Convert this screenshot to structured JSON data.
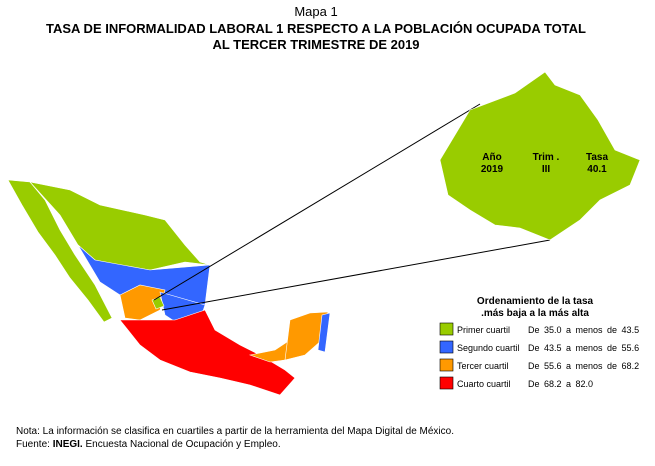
{
  "header": {
    "label": "Mapa 1",
    "title": "TASA DE INFORMALIDAD LABORAL 1 RESPECTO A LA POBLACIÓN OCUPADA TOTAL",
    "subtitle": "AL TERCER TRIMESTRE DE 2019"
  },
  "callout": {
    "columns": [
      {
        "head": "Año",
        "value": "2019"
      },
      {
        "head": "Trim .",
        "value": "III"
      },
      {
        "head": "Tasa",
        "value": "40.1"
      }
    ]
  },
  "legend": {
    "title": "Ordenamiento de la tasa",
    "subtitle": ".más baja a la más alta",
    "items": [
      {
        "label": "Primer cuartil",
        "range": "De 35.0 a menos de 43.5",
        "color": "#99cc00"
      },
      {
        "label": "Segundo cuartil",
        "range": "De 43.5 a menos de 55.6",
        "color": "#3366ff"
      },
      {
        "label": "Tercer cuartil",
        "range": "De 55.6 a menos de 68.2",
        "color": "#ff9900"
      },
      {
        "label": "Cuarto cuartil",
        "range": "De 68.2 a 82.0",
        "color": "#ff0000"
      }
    ]
  },
  "footer": {
    "note": "Nota: La información se clasifica en cuartiles a partir de la herramienta del Mapa Digital de México.",
    "source_label": "Fuente:",
    "source_org": "INEGI.",
    "source_text": "Encuesta Nacional de Ocupación y Empleo."
  }
}
